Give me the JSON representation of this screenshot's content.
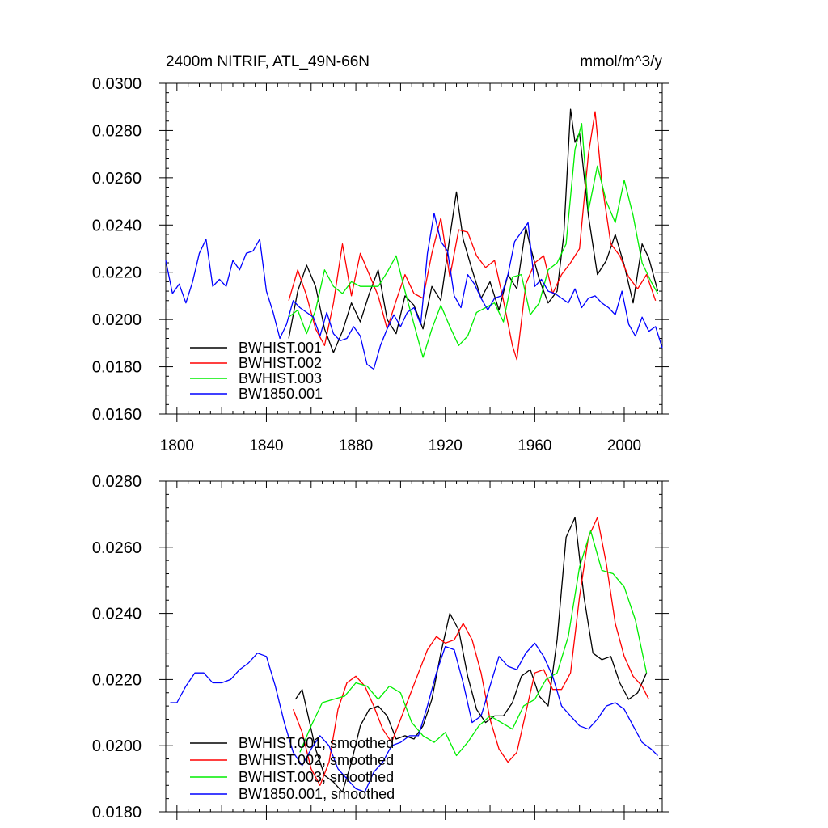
{
  "chart_data": [
    {
      "type": "line",
      "title": "2400m NITRIF, ATL_49N-66N",
      "units": "mmol/m^3/y",
      "xlim": [
        1795,
        2017
      ],
      "ylim": [
        0.016,
        0.03
      ],
      "x_ticks": [
        "1800",
        "1840",
        "1880",
        "1920",
        "1960",
        "2000"
      ],
      "y_ticks": [
        "0.0160",
        "0.0180",
        "0.0200",
        "0.0220",
        "0.0240",
        "0.0260",
        "0.0280",
        "0.0300"
      ],
      "legend_position": "bottom-left",
      "series": [
        {
          "name": "BWHIST.001",
          "color": "#000000",
          "x": [
            1850,
            1854,
            1858,
            1862,
            1866,
            1870,
            1874,
            1878,
            1882,
            1886,
            1890,
            1894,
            1898,
            1902,
            1906,
            1910,
            1914,
            1918,
            1922,
            1925,
            1928,
            1932,
            1936,
            1940,
            1944,
            1948,
            1952,
            1956,
            1958,
            1962,
            1966,
            1970,
            1973,
            1976,
            1978,
            1980,
            1984,
            1988,
            1992,
            1996,
            2000,
            2004,
            2008,
            2011,
            2015
          ],
          "values": [
            0.0192,
            0.0212,
            0.0223,
            0.0214,
            0.0196,
            0.0186,
            0.0195,
            0.0207,
            0.0199,
            0.0211,
            0.0221,
            0.02,
            0.0194,
            0.021,
            0.0206,
            0.0196,
            0.0214,
            0.0208,
            0.0235,
            0.0254,
            0.0234,
            0.0221,
            0.0209,
            0.0216,
            0.0204,
            0.0219,
            0.0213,
            0.0239,
            0.0231,
            0.0217,
            0.0207,
            0.0212,
            0.0236,
            0.0289,
            0.0275,
            0.0279,
            0.0244,
            0.0219,
            0.0225,
            0.0236,
            0.0223,
            0.0207,
            0.0232,
            0.0226,
            0.0212
          ]
        },
        {
          "name": "BWHIST.002",
          "color": "#ff0000",
          "x": [
            1850,
            1854,
            1858,
            1862,
            1866,
            1870,
            1874,
            1878,
            1882,
            1886,
            1890,
            1894,
            1898,
            1902,
            1906,
            1910,
            1914,
            1918,
            1922,
            1926,
            1930,
            1934,
            1938,
            1942,
            1946,
            1950,
            1952,
            1956,
            1960,
            1964,
            1968,
            1972,
            1976,
            1980,
            1984,
            1987,
            1990,
            1994,
            1998,
            2002,
            2006,
            2010,
            2014
          ],
          "values": [
            0.0208,
            0.0221,
            0.021,
            0.0196,
            0.0189,
            0.0207,
            0.0232,
            0.021,
            0.0228,
            0.0219,
            0.021,
            0.0196,
            0.0208,
            0.0219,
            0.0211,
            0.0209,
            0.0228,
            0.0243,
            0.0218,
            0.0238,
            0.0237,
            0.0227,
            0.0222,
            0.0225,
            0.0208,
            0.0189,
            0.0183,
            0.0215,
            0.0224,
            0.0227,
            0.0211,
            0.0219,
            0.0224,
            0.023,
            0.027,
            0.0288,
            0.0258,
            0.0232,
            0.0227,
            0.0218,
            0.0213,
            0.0219,
            0.0208
          ]
        },
        {
          "name": "BWHIST.003",
          "color": "#00ee00",
          "x": [
            1850,
            1854,
            1858,
            1862,
            1866,
            1870,
            1874,
            1878,
            1882,
            1886,
            1890,
            1894,
            1898,
            1902,
            1906,
            1910,
            1914,
            1918,
            1922,
            1926,
            1930,
            1934,
            1938,
            1942,
            1946,
            1950,
            1954,
            1958,
            1962,
            1966,
            1970,
            1974,
            1978,
            1981,
            1984,
            1988,
            1992,
            1996,
            2000,
            2004,
            2008,
            2012,
            2015
          ],
          "values": [
            0.0201,
            0.0204,
            0.0194,
            0.0204,
            0.0221,
            0.0214,
            0.0211,
            0.0216,
            0.0214,
            0.0214,
            0.0214,
            0.022,
            0.0227,
            0.0212,
            0.0198,
            0.0184,
            0.0196,
            0.0206,
            0.0197,
            0.0189,
            0.0193,
            0.0203,
            0.0205,
            0.0207,
            0.0199,
            0.0218,
            0.0219,
            0.0202,
            0.0207,
            0.0221,
            0.0224,
            0.0232,
            0.0272,
            0.0283,
            0.0246,
            0.0265,
            0.025,
            0.0241,
            0.0259,
            0.0244,
            0.0224,
            0.0216,
            0.0211
          ]
        },
        {
          "name": "BW1850.001",
          "color": "#0000ff",
          "x": [
            1795,
            1798,
            1801,
            1804,
            1807,
            1810,
            1813,
            1816,
            1819,
            1822,
            1825,
            1828,
            1831,
            1834,
            1837,
            1840,
            1843,
            1846,
            1849,
            1852,
            1855,
            1858,
            1861,
            1864,
            1867,
            1870,
            1873,
            1876,
            1879,
            1882,
            1885,
            1888,
            1891,
            1894,
            1897,
            1900,
            1903,
            1906,
            1909,
            1912,
            1915,
            1918,
            1921,
            1924,
            1927,
            1930,
            1933,
            1936,
            1939,
            1942,
            1945,
            1948,
            1951,
            1954,
            1957,
            1960,
            1963,
            1966,
            1969,
            1972,
            1975,
            1978,
            1981,
            1984,
            1987,
            1990,
            1993,
            1996,
            1999,
            2002,
            2005,
            2008,
            2011,
            2014,
            2017
          ],
          "values": [
            0.0225,
            0.0211,
            0.0215,
            0.0207,
            0.0216,
            0.0228,
            0.0234,
            0.0214,
            0.0217,
            0.0214,
            0.0225,
            0.0221,
            0.0228,
            0.0229,
            0.0234,
            0.0212,
            0.0203,
            0.0192,
            0.0198,
            0.0208,
            0.0205,
            0.0203,
            0.0201,
            0.0193,
            0.0203,
            0.0194,
            0.0191,
            0.0192,
            0.0197,
            0.0193,
            0.0181,
            0.0179,
            0.0189,
            0.0196,
            0.0202,
            0.0197,
            0.0203,
            0.0205,
            0.0198,
            0.0228,
            0.0245,
            0.0233,
            0.0229,
            0.021,
            0.0205,
            0.0219,
            0.0215,
            0.0209,
            0.0204,
            0.0209,
            0.021,
            0.0219,
            0.0233,
            0.0237,
            0.0241,
            0.0214,
            0.0217,
            0.0212,
            0.0211,
            0.0209,
            0.0207,
            0.0213,
            0.0205,
            0.0209,
            0.021,
            0.0207,
            0.0205,
            0.0202,
            0.0212,
            0.0198,
            0.0193,
            0.0201,
            0.0195,
            0.0197,
            0.0188
          ]
        }
      ]
    },
    {
      "type": "line",
      "title": "",
      "xlim": [
        1795,
        2017
      ],
      "ylim": [
        0.018,
        0.028
      ],
      "x_ticks": [],
      "y_ticks": [
        "0.0180",
        "0.0200",
        "0.0220",
        "0.0240",
        "0.0260",
        "0.0280"
      ],
      "legend_position": "bottom-left",
      "series": [
        {
          "name": "BWHIST.001, smoothed",
          "color": "#000000",
          "x": [
            1853,
            1856,
            1859,
            1862,
            1866,
            1870,
            1874,
            1878,
            1882,
            1886,
            1890,
            1894,
            1898,
            1902,
            1906,
            1910,
            1914,
            1918,
            1922,
            1926,
            1930,
            1934,
            1938,
            1942,
            1946,
            1950,
            1954,
            1958,
            1962,
            1966,
            1970,
            1974,
            1978,
            1982,
            1986,
            1990,
            1994,
            1998,
            2002,
            2006,
            2010
          ],
          "values": [
            0.0214,
            0.0217,
            0.0208,
            0.0199,
            0.0191,
            0.0189,
            0.0186,
            0.0195,
            0.0206,
            0.0211,
            0.0212,
            0.0209,
            0.0202,
            0.0203,
            0.0202,
            0.0206,
            0.0214,
            0.0228,
            0.024,
            0.0235,
            0.0221,
            0.0211,
            0.0207,
            0.0209,
            0.0209,
            0.0213,
            0.0221,
            0.0223,
            0.0215,
            0.0212,
            0.0232,
            0.0263,
            0.0269,
            0.0245,
            0.0228,
            0.0226,
            0.0227,
            0.0219,
            0.0214,
            0.0216,
            0.0222
          ]
        },
        {
          "name": "BWHIST.002, smoothed",
          "color": "#ff0000",
          "x": [
            1852,
            1856,
            1860,
            1864,
            1868,
            1872,
            1876,
            1880,
            1884,
            1888,
            1892,
            1896,
            1900,
            1904,
            1908,
            1912,
            1916,
            1920,
            1924,
            1928,
            1932,
            1936,
            1940,
            1944,
            1948,
            1952,
            1956,
            1960,
            1964,
            1968,
            1972,
            1976,
            1980,
            1984,
            1988,
            1992,
            1996,
            2000,
            2004,
            2008,
            2011
          ],
          "values": [
            0.0211,
            0.0204,
            0.0193,
            0.0188,
            0.0195,
            0.0211,
            0.0219,
            0.0221,
            0.0218,
            0.0212,
            0.0205,
            0.0201,
            0.0208,
            0.0215,
            0.0222,
            0.0229,
            0.0233,
            0.0231,
            0.0232,
            0.0237,
            0.0232,
            0.0222,
            0.0208,
            0.0199,
            0.0195,
            0.0198,
            0.021,
            0.0222,
            0.0223,
            0.0217,
            0.0217,
            0.0222,
            0.0245,
            0.0263,
            0.0269,
            0.0255,
            0.0237,
            0.0227,
            0.0221,
            0.0218,
            0.0214
          ]
        },
        {
          "name": "BWHIST.003, smoothed",
          "color": "#00ee00",
          "x": [
            1855,
            1860,
            1865,
            1870,
            1875,
            1880,
            1885,
            1890,
            1895,
            1900,
            1905,
            1910,
            1915,
            1920,
            1925,
            1930,
            1935,
            1940,
            1945,
            1950,
            1955,
            1960,
            1965,
            1970,
            1975,
            1980,
            1985,
            1990,
            1995,
            2000,
            2005,
            2010
          ],
          "values": [
            0.0198,
            0.0206,
            0.0213,
            0.0214,
            0.0215,
            0.0219,
            0.0218,
            0.0214,
            0.0218,
            0.0216,
            0.0207,
            0.0203,
            0.0201,
            0.0204,
            0.0197,
            0.0201,
            0.0206,
            0.0209,
            0.0207,
            0.0205,
            0.0212,
            0.0214,
            0.022,
            0.0222,
            0.0233,
            0.0254,
            0.0265,
            0.0253,
            0.0252,
            0.0248,
            0.0238,
            0.0222
          ]
        },
        {
          "name": "BW1850.001, smoothed",
          "color": "#0000ff",
          "x": [
            1797,
            1800,
            1804,
            1808,
            1812,
            1816,
            1820,
            1824,
            1828,
            1832,
            1836,
            1840,
            1844,
            1848,
            1852,
            1856,
            1860,
            1864,
            1868,
            1872,
            1876,
            1880,
            1884,
            1888,
            1892,
            1896,
            1900,
            1904,
            1908,
            1912,
            1916,
            1920,
            1924,
            1928,
            1932,
            1936,
            1940,
            1944,
            1948,
            1952,
            1956,
            1960,
            1964,
            1968,
            1972,
            1976,
            1980,
            1984,
            1988,
            1992,
            1996,
            2000,
            2004,
            2008,
            2012,
            2015
          ],
          "values": [
            0.0213,
            0.0213,
            0.0218,
            0.0222,
            0.0222,
            0.0219,
            0.0219,
            0.022,
            0.0223,
            0.0225,
            0.0228,
            0.0227,
            0.0218,
            0.0207,
            0.0198,
            0.0194,
            0.0199,
            0.0203,
            0.02,
            0.0193,
            0.019,
            0.0187,
            0.0186,
            0.0192,
            0.0195,
            0.02,
            0.0201,
            0.0203,
            0.0203,
            0.0212,
            0.0222,
            0.023,
            0.0229,
            0.0219,
            0.0207,
            0.0209,
            0.0218,
            0.0227,
            0.0224,
            0.0223,
            0.0228,
            0.0231,
            0.0227,
            0.0221,
            0.0212,
            0.0209,
            0.0206,
            0.0205,
            0.0208,
            0.0212,
            0.0213,
            0.0211,
            0.0206,
            0.0201,
            0.0199,
            0.0197
          ]
        }
      ]
    }
  ]
}
